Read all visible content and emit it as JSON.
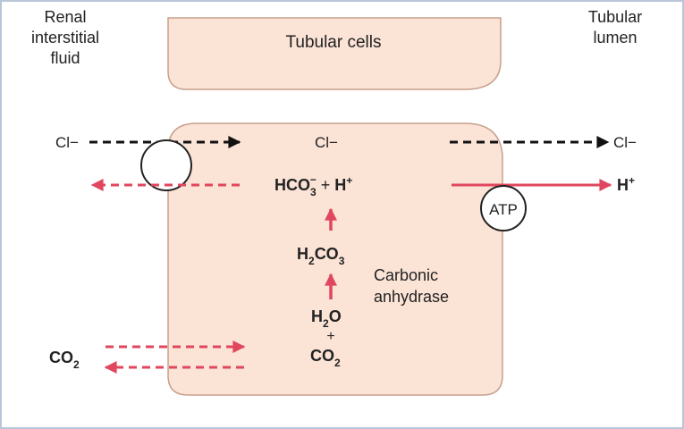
{
  "labels": {
    "interstitial_line1": "Renal",
    "interstitial_line2": "interstitial",
    "interstitial_line3": "fluid",
    "lumen_line1": "Tubular",
    "lumen_line2": "lumen",
    "tubular_cells": "Tubular cells",
    "cl_left": "Cl−",
    "cl_center": "Cl−",
    "cl_right": "Cl−",
    "hco3_base": "HCO",
    "hco3_sub": "3",
    "hco3_sup": "−",
    "plus_middle": " + ",
    "h_center": "H",
    "h_center_sup": "+",
    "h_right": "H",
    "h_right_sup": "+",
    "atp": "ATP",
    "h2co3_h": "H",
    "h2co3_sub1": "2",
    "h2co3_co": "CO",
    "h2co3_sub2": "3",
    "enzyme_line1": "Carbonic",
    "enzyme_line2": "anhydrase",
    "h2o_h": "H",
    "h2o_sub": "2",
    "h2o_o": "O",
    "plus_vertical": "+",
    "co2_center_base": "CO",
    "co2_center_sub": "2",
    "co2_left_base": "CO",
    "co2_left_sub": "2"
  },
  "colors": {
    "cell_fill": "#fbe3d6",
    "cell_stroke": "#c7a08c",
    "arrow_red": "#e0475e",
    "arrow_black": "#111111",
    "border": "#b9c6d8"
  }
}
